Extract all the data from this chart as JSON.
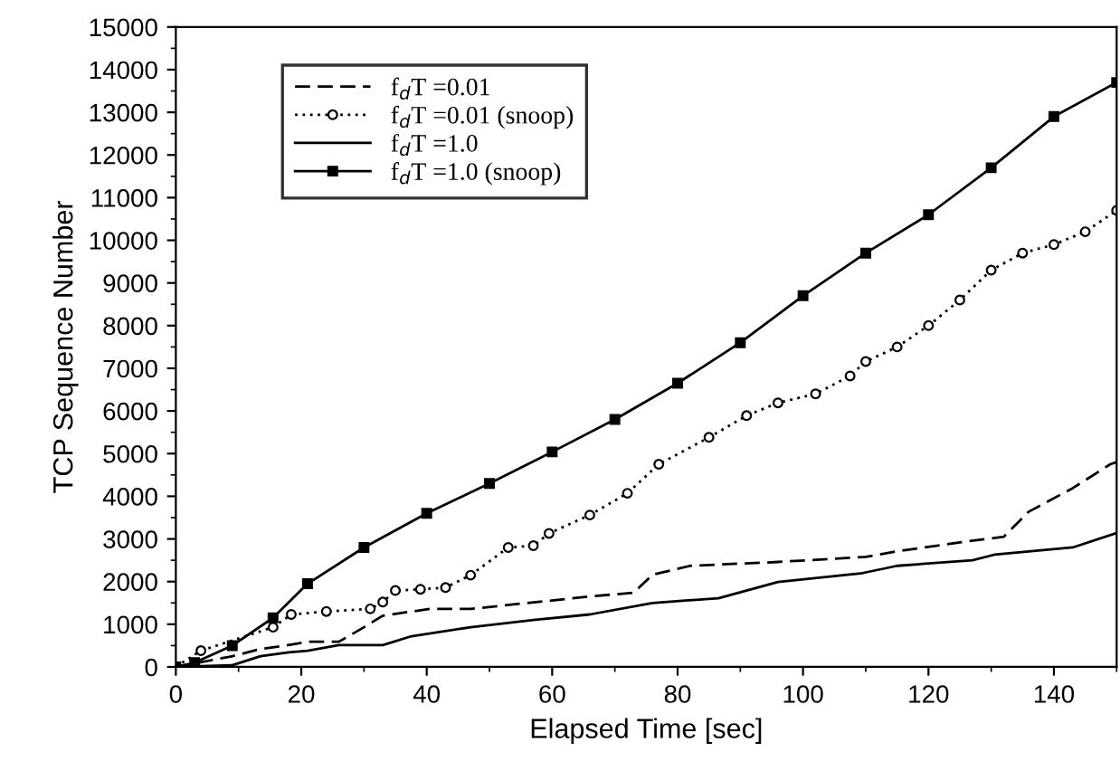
{
  "chart_data": {
    "type": "line",
    "xlabel": "Elapsed Time [sec]",
    "ylabel": "TCP Sequence Number",
    "xlim": [
      0,
      150
    ],
    "xticks": [
      0,
      20,
      40,
      60,
      80,
      100,
      120,
      140
    ],
    "ylim": [
      0,
      15000
    ],
    "yticks": [
      0,
      1000,
      2000,
      3000,
      4000,
      5000,
      6000,
      7000,
      8000,
      9000,
      10000,
      11000,
      12000,
      13000,
      14000,
      15000
    ],
    "grid": false,
    "legend": "top left",
    "series": [
      {
        "name": "f$_{d}$T =0.01",
        "color": "#000000",
        "line_style": "dashed",
        "marker": "none",
        "x": [
          0,
          9,
          13.5,
          17.5,
          21,
          26,
          30,
          33,
          40.5,
          47,
          66,
          73,
          76,
          82,
          96,
          110,
          115,
          125,
          132,
          136,
          143,
          149,
          150
        ],
        "values": [
          0,
          250,
          420,
          500,
          590,
          590,
          930,
          1200,
          1360,
          1360,
          1650,
          1740,
          2160,
          2370,
          2460,
          2580,
          2710,
          2920,
          3050,
          3640,
          4190,
          4750,
          4800
        ]
      },
      {
        "name": "f$_{d}$T =0.01 (snoop)",
        "color": "#000000",
        "line_style": "dotted",
        "marker": "circle",
        "x": [
          0,
          4,
          15.5,
          18.4,
          24,
          31,
          33,
          35,
          39,
          43,
          47,
          53,
          57,
          59.5,
          66,
          72,
          77,
          85,
          91,
          96,
          102,
          107.5,
          110,
          115,
          120,
          125,
          130,
          135,
          140,
          145,
          150
        ],
        "values": [
          0,
          380,
          930,
          1230,
          1300,
          1360,
          1520,
          1790,
          1820,
          1860,
          2150,
          2800,
          2840,
          3130,
          3560,
          4070,
          4750,
          5380,
          5890,
          6190,
          6400,
          6820,
          7160,
          7500,
          8000,
          8600,
          9300,
          9700,
          9900,
          10200,
          10700
        ]
      },
      {
        "name": "f$_{d}$T =1.0",
        "color": "#000000",
        "line_style": "solid",
        "marker": "none",
        "x": [
          0,
          9,
          13.5,
          18,
          21,
          26,
          33,
          37.6,
          47,
          57,
          66,
          76,
          86.5,
          96,
          109.5,
          115,
          127,
          130.5,
          143,
          150
        ],
        "values": [
          0,
          40,
          250,
          340,
          380,
          510,
          510,
          720,
          930,
          1100,
          1230,
          1500,
          1610,
          1990,
          2200,
          2370,
          2500,
          2630,
          2800,
          3140
        ]
      },
      {
        "name": "f$_{d}$T =1.0 (snoop)",
        "color": "#000000",
        "line_style": "solid",
        "marker": "square",
        "x": [
          0,
          3,
          9,
          15.5,
          21,
          30,
          40,
          50,
          60,
          70,
          80,
          90,
          100,
          110,
          120,
          130,
          140,
          150
        ],
        "values": [
          0,
          100,
          500,
          1150,
          1950,
          2800,
          3600,
          4300,
          5040,
          5800,
          6650,
          7600,
          8700,
          9700,
          10600,
          11700,
          12900,
          13700
        ]
      }
    ]
  }
}
